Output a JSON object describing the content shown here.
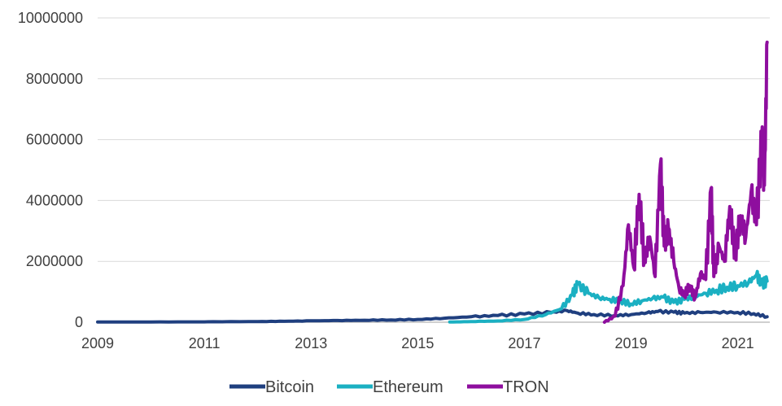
{
  "chart_data": {
    "type": "line",
    "title": "",
    "xlabel": "",
    "ylabel": "",
    "xlim": [
      2009,
      2021.6
    ],
    "ylim": [
      0,
      10000000
    ],
    "x_ticks": [
      2009,
      2011,
      2013,
      2015,
      2017,
      2019,
      2021
    ],
    "x_tick_labels": [
      "2009",
      "2011",
      "2013",
      "2015",
      "2017",
      "2019",
      "2021"
    ],
    "y_ticks": [
      0,
      2000000,
      4000000,
      6000000,
      8000000,
      10000000
    ],
    "y_tick_labels": [
      "0",
      "2000000",
      "4000000",
      "6000000",
      "8000000",
      "10000000"
    ],
    "grid": "horizontal",
    "legend": "bottom",
    "series": [
      {
        "name": "Bitcoin",
        "color": "#1f3f7f",
        "x": [
          2009.0,
          2010.0,
          2011.0,
          2012.0,
          2012.5,
          2013.0,
          2013.5,
          2014.0,
          2014.5,
          2015.0,
          2015.5,
          2016.0,
          2016.5,
          2017.0,
          2017.5,
          2017.8,
          2018.0,
          2018.3,
          2018.7,
          2019.0,
          2019.3,
          2019.5,
          2019.8,
          2020.0,
          2020.3,
          2020.6,
          2021.0,
          2021.3,
          2021.55
        ],
        "y": [
          5000,
          8000,
          12000,
          20000,
          30000,
          45000,
          55000,
          65000,
          75000,
          90000,
          130000,
          180000,
          220000,
          270000,
          320000,
          380000,
          300000,
          250000,
          220000,
          250000,
          310000,
          350000,
          330000,
          300000,
          320000,
          330000,
          320000,
          280000,
          180000
        ]
      },
      {
        "name": "Ethereum",
        "color": "#1bb0c2",
        "x": [
          2015.6,
          2016.0,
          2016.5,
          2017.0,
          2017.4,
          2017.7,
          2017.9,
          2018.0,
          2018.2,
          2018.4,
          2018.6,
          2018.8,
          2019.0,
          2019.2,
          2019.4,
          2019.6,
          2019.8,
          2020.0,
          2020.2,
          2020.4,
          2020.6,
          2020.8,
          2021.0,
          2021.2,
          2021.35,
          2021.45,
          2021.55
        ],
        "y": [
          5000,
          20000,
          40000,
          90000,
          250000,
          450000,
          900000,
          1250000,
          950000,
          800000,
          750000,
          700000,
          600000,
          700000,
          780000,
          820000,
          650000,
          750000,
          850000,
          950000,
          1050000,
          1150000,
          1200000,
          1300000,
          1550000,
          1250000,
          1350000
        ]
      },
      {
        "name": "TRON",
        "color": "#8e0e9e",
        "x": [
          2018.5,
          2018.7,
          2018.85,
          2018.95,
          2019.05,
          2019.15,
          2019.25,
          2019.35,
          2019.45,
          2019.55,
          2019.62,
          2019.7,
          2019.8,
          2019.9,
          2020.0,
          2020.1,
          2020.2,
          2020.3,
          2020.4,
          2020.5,
          2020.55,
          2020.65,
          2020.75,
          2020.85,
          2020.95,
          2021.05,
          2021.15,
          2021.25,
          2021.35,
          2021.45,
          2021.5,
          2021.55
        ],
        "y": [
          0,
          200000,
          1200000,
          3200000,
          1800000,
          4200000,
          2000000,
          2800000,
          1500000,
          5200000,
          2500000,
          3100000,
          2000000,
          1100000,
          900000,
          1200000,
          800000,
          1600000,
          1400000,
          4400000,
          1500000,
          2500000,
          2000000,
          3800000,
          2200000,
          3500000,
          2800000,
          4300000,
          3200000,
          6100000,
          4500000,
          9200000
        ]
      }
    ]
  }
}
